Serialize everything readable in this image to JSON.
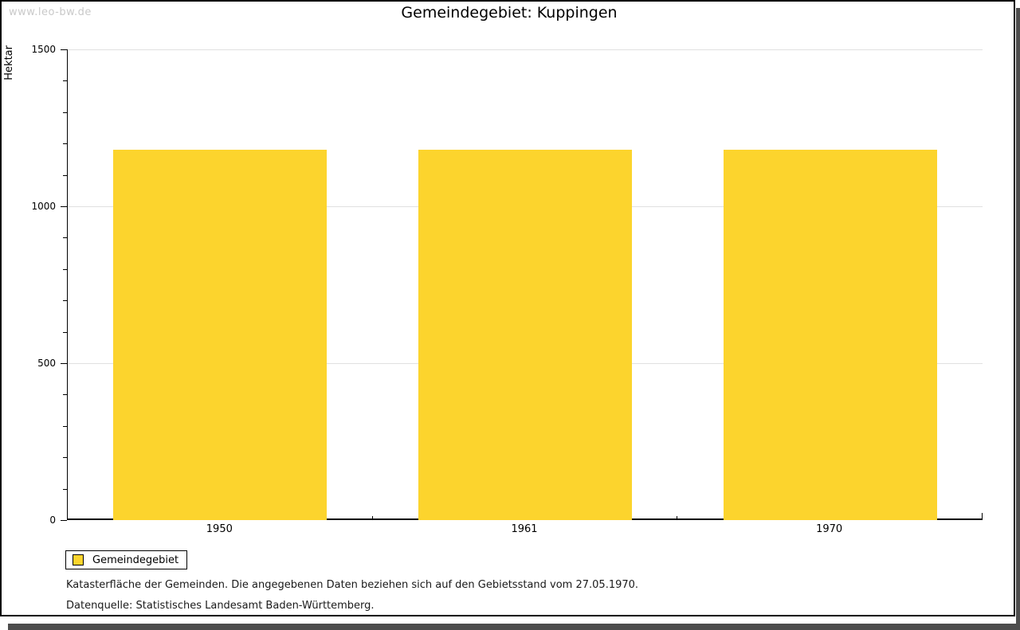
{
  "watermark": "www.leo-bw.de",
  "title": "Gemeindegebiet: Kuppingen",
  "chart_data": {
    "type": "bar",
    "title": "Gemeindegebiet: Kuppingen",
    "categories": [
      "1950",
      "1961",
      "1970"
    ],
    "series": [
      {
        "name": "Gemeindegebiet",
        "values": [
          1181,
          1181,
          1181
        ]
      }
    ],
    "xlabel": "",
    "ylabel": "Hektar",
    "ylim": [
      0,
      1500
    ],
    "y_major_ticks": [
      0,
      500,
      1000,
      1500
    ],
    "y_minor_step": 100,
    "grid": true,
    "legend_position": "bottom-left"
  },
  "legend": {
    "items": [
      {
        "label": "Gemeindegebiet"
      }
    ]
  },
  "footnotes": {
    "line1": "Katasterfläche der Gemeinden. Die angegebenen Daten beziehen sich auf den Gebietsstand vom 27.05.1970.",
    "line2": "Datenquelle: Statistisches Landesamt Baden-Württemberg."
  },
  "colors": {
    "bar": "#FCD42D",
    "grid": "#E0E0E0",
    "axis": "#000000",
    "watermark": "#C9C9C9",
    "shadow": "#4D4D4D"
  }
}
